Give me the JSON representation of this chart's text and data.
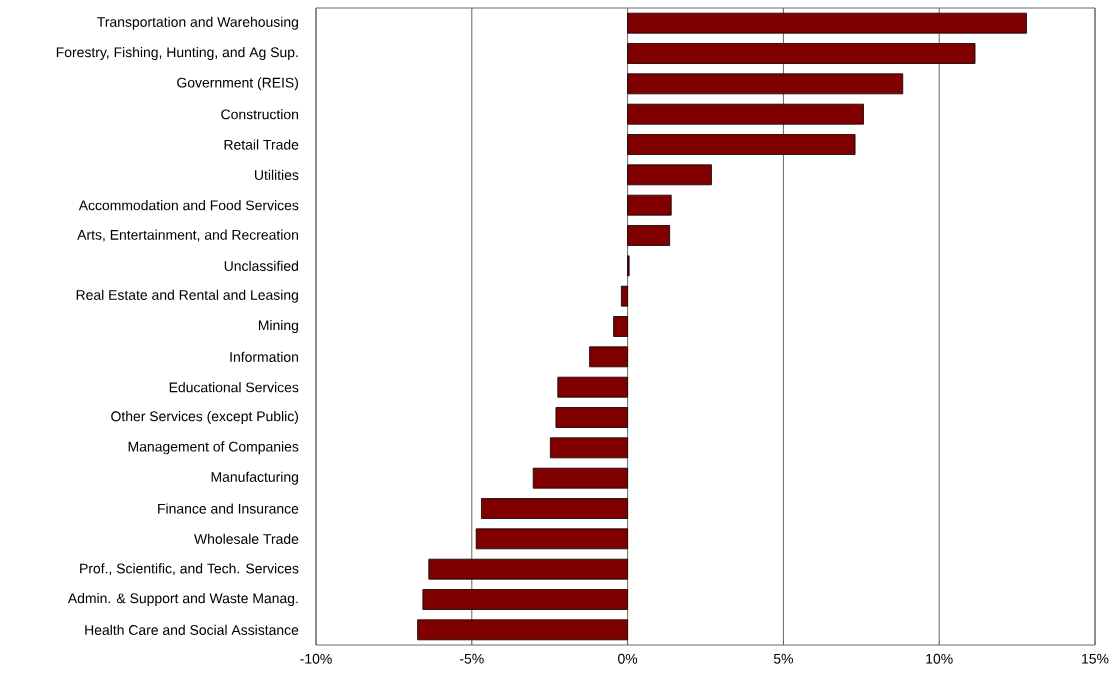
{
  "chart_data": {
    "type": "bar",
    "orientation": "horizontal",
    "categories": [
      "Transportation and Warehousing",
      "Forestry, Fishing, Hunting, and Ag Sup.",
      "Government (REIS)",
      "Construction",
      "Retail Trade",
      "Utilities",
      "Accommodation and Food Services",
      "Arts, Entertainment, and Recreation",
      "Unclassified",
      "Real Estate and Rental and Leasing",
      "Mining",
      "Information",
      "Educational Services",
      "Other Services (except Public)",
      "Management of Companies",
      "Manufacturing",
      "Finance and Insurance",
      "Wholesale Trade",
      "Prof., Scientific, and Tech. Services",
      "Admin. & Support and Waste Manag.",
      "Health Care and Social Assistance"
    ],
    "values": [
      12.8,
      11.15,
      8.83,
      7.57,
      7.3,
      2.69,
      1.4,
      1.35,
      0.05,
      -0.2,
      -0.45,
      -1.22,
      -2.24,
      -2.3,
      -2.48,
      -3.03,
      -4.69,
      -4.86,
      -6.38,
      -6.57,
      -6.74
    ],
    "color": "#800000",
    "xlim": [
      -10,
      15
    ],
    "xticks": [
      {
        "value": -10,
        "label": "-10%"
      },
      {
        "value": -5,
        "label": "-5%"
      },
      {
        "value": 0,
        "label": "0%"
      },
      {
        "value": 5,
        "label": "5%"
      },
      {
        "value": 10,
        "label": "10%"
      },
      {
        "value": 15,
        "label": "15%"
      }
    ],
    "grid": "x"
  }
}
